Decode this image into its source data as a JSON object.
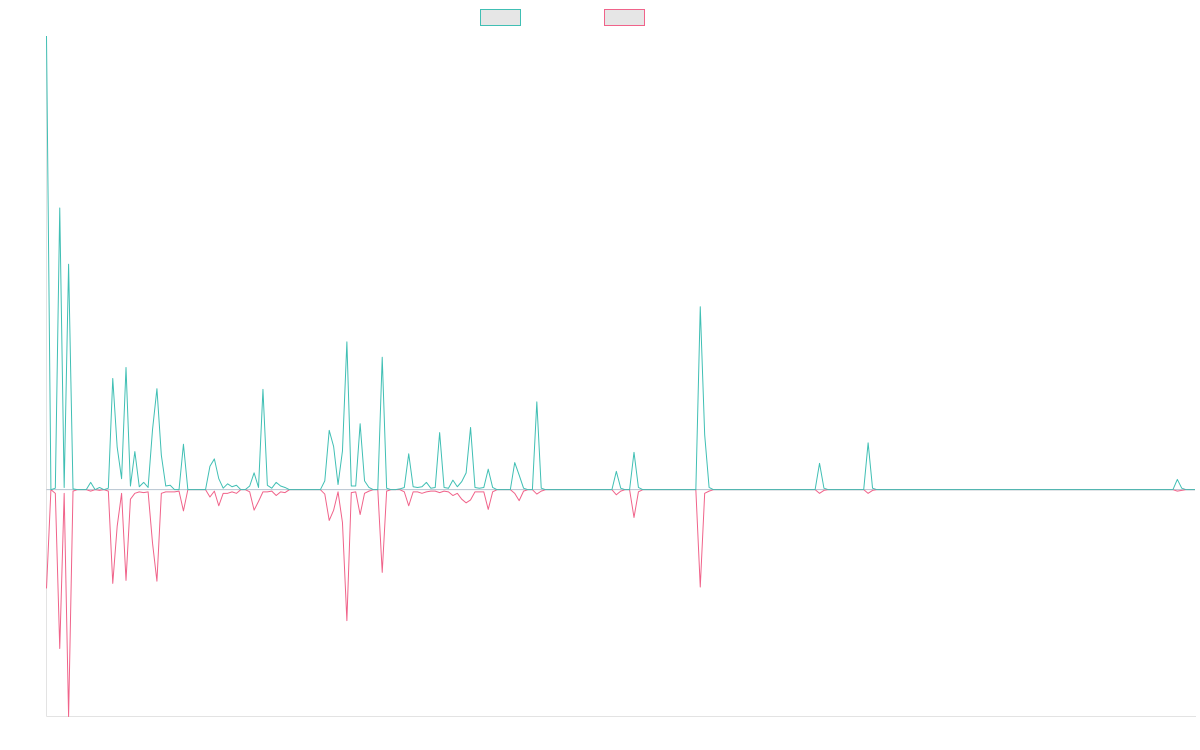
{
  "chart_data": {
    "type": "line",
    "title": "",
    "xlabel": "",
    "ylabel": "",
    "grid": false,
    "legend_position": "top-center",
    "ylim": [
      -31,
      62
    ],
    "x_count": 261,
    "colors": {
      "series_1": "#40bfb4",
      "series_2": "#f0638a",
      "axis": "#e3e3e3"
    },
    "series": [
      {
        "key": "series_1",
        "points": [
          [
            0,
            62
          ],
          [
            2,
            0.2
          ],
          [
            3,
            38.5
          ],
          [
            4,
            0.3
          ],
          [
            5,
            30.8
          ],
          [
            6,
            0.1
          ],
          [
            10,
            1
          ],
          [
            12,
            0.3
          ],
          [
            14,
            0.2
          ],
          [
            15,
            15.2
          ],
          [
            16,
            5.8
          ],
          [
            17,
            1.5
          ],
          [
            18,
            16.7
          ],
          [
            19,
            0.5
          ],
          [
            20,
            5.2
          ],
          [
            21,
            0.4
          ],
          [
            22,
            1
          ],
          [
            23,
            0.3
          ],
          [
            24,
            8.2
          ],
          [
            25,
            13.8
          ],
          [
            26,
            4.7
          ],
          [
            27,
            0.5
          ],
          [
            28,
            0.6
          ],
          [
            31,
            6.2
          ],
          [
            37,
            3.2
          ],
          [
            38,
            4.2
          ],
          [
            39,
            1.5
          ],
          [
            40,
            0.2
          ],
          [
            41,
            0.8
          ],
          [
            42,
            0.4
          ],
          [
            43,
            0.6
          ],
          [
            46,
            0.5
          ],
          [
            47,
            2.3
          ],
          [
            48,
            0.3
          ],
          [
            49,
            13.7
          ],
          [
            50,
            0.6
          ],
          [
            51,
            0.2
          ],
          [
            52,
            1
          ],
          [
            53,
            0.5
          ],
          [
            54,
            0.3
          ],
          [
            63,
            1.2
          ],
          [
            64,
            8.1
          ],
          [
            65,
            5.9
          ],
          [
            66,
            0.7
          ],
          [
            67,
            5.3
          ],
          [
            68,
            20.2
          ],
          [
            69,
            0.5
          ],
          [
            70,
            0.5
          ],
          [
            71,
            9
          ],
          [
            72,
            1.2
          ],
          [
            73,
            0.3
          ],
          [
            76,
            18.1
          ],
          [
            77,
            0.2
          ],
          [
            80,
            0.1
          ],
          [
            81,
            0.3
          ],
          [
            82,
            4.9
          ],
          [
            83,
            0.4
          ],
          [
            84,
            0.3
          ],
          [
            85,
            0.4
          ],
          [
            86,
            1
          ],
          [
            87,
            0.2
          ],
          [
            88,
            0.3
          ],
          [
            89,
            7.8
          ],
          [
            90,
            0.3
          ],
          [
            91,
            0.2
          ],
          [
            92,
            1.3
          ],
          [
            93,
            0.4
          ],
          [
            94,
            1.1
          ],
          [
            95,
            2.3
          ],
          [
            96,
            8.5
          ],
          [
            97,
            0.3
          ],
          [
            98,
            0.2
          ],
          [
            99,
            0.3
          ],
          [
            100,
            2.8
          ],
          [
            101,
            0.3
          ],
          [
            106,
            3.7
          ],
          [
            107,
            2
          ],
          [
            108,
            0.2
          ],
          [
            111,
            12
          ],
          [
            112,
            0.2
          ],
          [
            129,
            2.5
          ],
          [
            130,
            0.2
          ],
          [
            133,
            5.1
          ],
          [
            134,
            0.3
          ],
          [
            148,
            25
          ],
          [
            149,
            7.5
          ],
          [
            150,
            0.3
          ],
          [
            175,
            3.6
          ],
          [
            176,
            0.2
          ],
          [
            186,
            6.4
          ],
          [
            187,
            0.2
          ],
          [
            256,
            1.4
          ],
          [
            257,
            0.2
          ]
        ]
      },
      {
        "key": "series_2",
        "points": [
          [
            0,
            -13.5
          ],
          [
            1,
            0
          ],
          [
            2,
            -0.5
          ],
          [
            3,
            -21.7
          ],
          [
            4,
            -0.5
          ],
          [
            5,
            -31
          ],
          [
            6,
            -0.2
          ],
          [
            10,
            -0.2
          ],
          [
            12,
            -0.1
          ],
          [
            14,
            -0.2
          ],
          [
            15,
            -12.8
          ],
          [
            16,
            -5
          ],
          [
            17,
            -0.5
          ],
          [
            18,
            -12.4
          ],
          [
            19,
            -1.3
          ],
          [
            20,
            -0.5
          ],
          [
            21,
            -0.3
          ],
          [
            22,
            -0.4
          ],
          [
            23,
            -0.3
          ],
          [
            24,
            -7.3
          ],
          [
            25,
            -12.5
          ],
          [
            26,
            -0.5
          ],
          [
            27,
            -0.3
          ],
          [
            28,
            -0.3
          ],
          [
            29,
            -0.3
          ],
          [
            30,
            -0.2
          ],
          [
            31,
            -2.9
          ],
          [
            37,
            -1
          ],
          [
            38,
            -0.2
          ],
          [
            39,
            -2.2
          ],
          [
            40,
            -0.5
          ],
          [
            41,
            -0.5
          ],
          [
            42,
            -0.3
          ],
          [
            43,
            -0.5
          ],
          [
            46,
            -0.3
          ],
          [
            47,
            -2.8
          ],
          [
            48,
            -1.6
          ],
          [
            49,
            -0.3
          ],
          [
            50,
            -0.3
          ],
          [
            51,
            -0.2
          ],
          [
            52,
            -0.8
          ],
          [
            53,
            -0.3
          ],
          [
            54,
            -0.4
          ],
          [
            63,
            -0.6
          ],
          [
            64,
            -4.2
          ],
          [
            65,
            -2.8
          ],
          [
            66,
            -0.3
          ],
          [
            67,
            -4.5
          ],
          [
            68,
            -17.9
          ],
          [
            69,
            -0.4
          ],
          [
            70,
            -0.3
          ],
          [
            71,
            -3.4
          ],
          [
            72,
            -0.5
          ],
          [
            73,
            -0.2
          ],
          [
            76,
            -11.3
          ],
          [
            77,
            -0.2
          ],
          [
            81,
            -0.3
          ],
          [
            82,
            -2.2
          ],
          [
            83,
            -0.3
          ],
          [
            84,
            -0.3
          ],
          [
            85,
            -0.5
          ],
          [
            86,
            -0.3
          ],
          [
            87,
            -0.2
          ],
          [
            88,
            -0.2
          ],
          [
            89,
            -0.4
          ],
          [
            90,
            -0.2
          ],
          [
            91,
            -0.3
          ],
          [
            92,
            -0.8
          ],
          [
            93,
            -0.5
          ],
          [
            94,
            -1.3
          ],
          [
            95,
            -1.8
          ],
          [
            96,
            -1.4
          ],
          [
            97,
            -0.3
          ],
          [
            98,
            -0.3
          ],
          [
            99,
            -0.3
          ],
          [
            100,
            -2.7
          ],
          [
            101,
            -0.3
          ],
          [
            106,
            -0.5
          ],
          [
            107,
            -1.5
          ],
          [
            108,
            -0.2
          ],
          [
            111,
            -0.6
          ],
          [
            112,
            -0.2
          ],
          [
            129,
            -0.7
          ],
          [
            130,
            -0.2
          ],
          [
            133,
            -3.8
          ],
          [
            134,
            -0.3
          ],
          [
            148,
            -13.3
          ],
          [
            149,
            -0.5
          ],
          [
            150,
            -0.2
          ],
          [
            175,
            -0.5
          ],
          [
            176,
            -0.1
          ],
          [
            186,
            -0.5
          ],
          [
            187,
            -0.1
          ],
          [
            256,
            -0.2
          ],
          [
            257,
            -0.1
          ]
        ]
      }
    ]
  }
}
